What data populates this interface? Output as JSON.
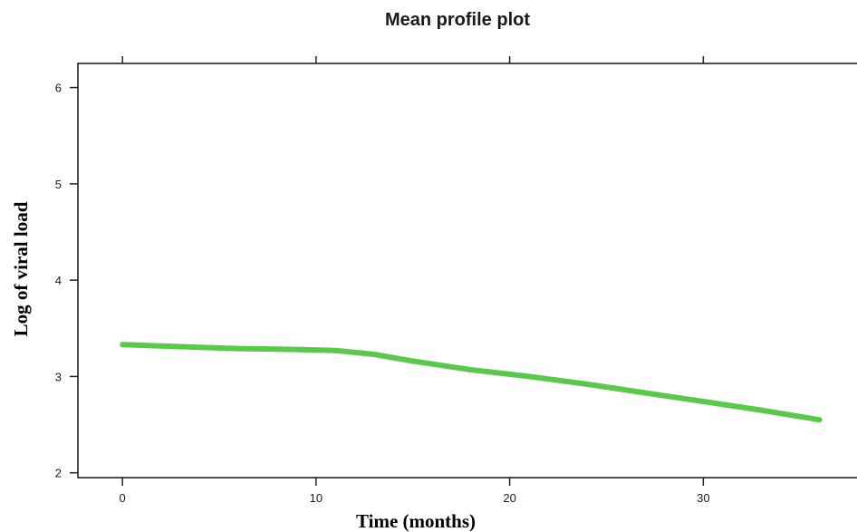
{
  "chart_data": {
    "type": "line",
    "title": "Mean profile plot",
    "xlabel": "Time (months)",
    "ylabel": "Log of viral load",
    "xlim": [
      -2.3,
      38.5
    ],
    "ylim": [
      1.95,
      6.25
    ],
    "x_ticks": [
      0,
      10,
      20,
      30
    ],
    "y_ticks": [
      2,
      3,
      4,
      5,
      6
    ],
    "x_tick_labels": [
      "0",
      "10",
      "20",
      "30"
    ],
    "y_tick_labels": [
      "2",
      "3",
      "4",
      "5",
      "6"
    ],
    "grid": false,
    "legend": "none",
    "series": [
      {
        "color": "#59c94a",
        "x": [
          0,
          3,
          6,
          9,
          11,
          13,
          15,
          18,
          21,
          24,
          27,
          30,
          33,
          36
        ],
        "y": [
          3.33,
          3.31,
          3.29,
          3.28,
          3.27,
          3.23,
          3.16,
          3.07,
          3.0,
          2.92,
          2.83,
          2.74,
          2.65,
          2.55
        ]
      }
    ]
  }
}
